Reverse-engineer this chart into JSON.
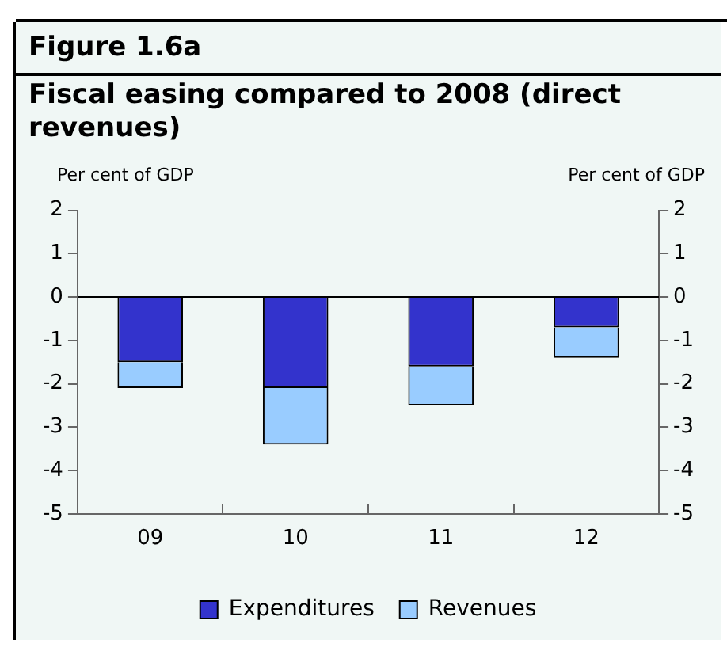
{
  "chart_data": {
    "type": "bar",
    "title": "Figure 1.6a",
    "subtitle": "Fiscal easing compared to 2008 (direct revenues)",
    "ylabel": "Per cent of GDP",
    "y2label": "Per cent of GDP",
    "categories": [
      "09",
      "10",
      "11",
      "12"
    ],
    "series": [
      {
        "name": "Expenditures",
        "color": "#3333cc",
        "values": [
          -1.5,
          -2.1,
          -1.6,
          -0.7
        ]
      },
      {
        "name": "Revenues",
        "color": "#99ccff",
        "values": [
          -0.6,
          -1.3,
          -0.9,
          -0.7
        ]
      }
    ],
    "stacked": true,
    "ylim": [
      -5,
      2
    ],
    "yticks": [
      -5,
      -4,
      -3,
      -2,
      -1,
      0,
      1,
      2
    ],
    "y2lim": [
      -5,
      2
    ],
    "y2ticks": [
      -5,
      -4,
      -3,
      -2,
      -1,
      0,
      1,
      2
    ],
    "ref_lines": [
      {
        "axis": "y",
        "value": 0,
        "color": "#000000"
      }
    ],
    "grid": false,
    "legend": "bottom"
  }
}
